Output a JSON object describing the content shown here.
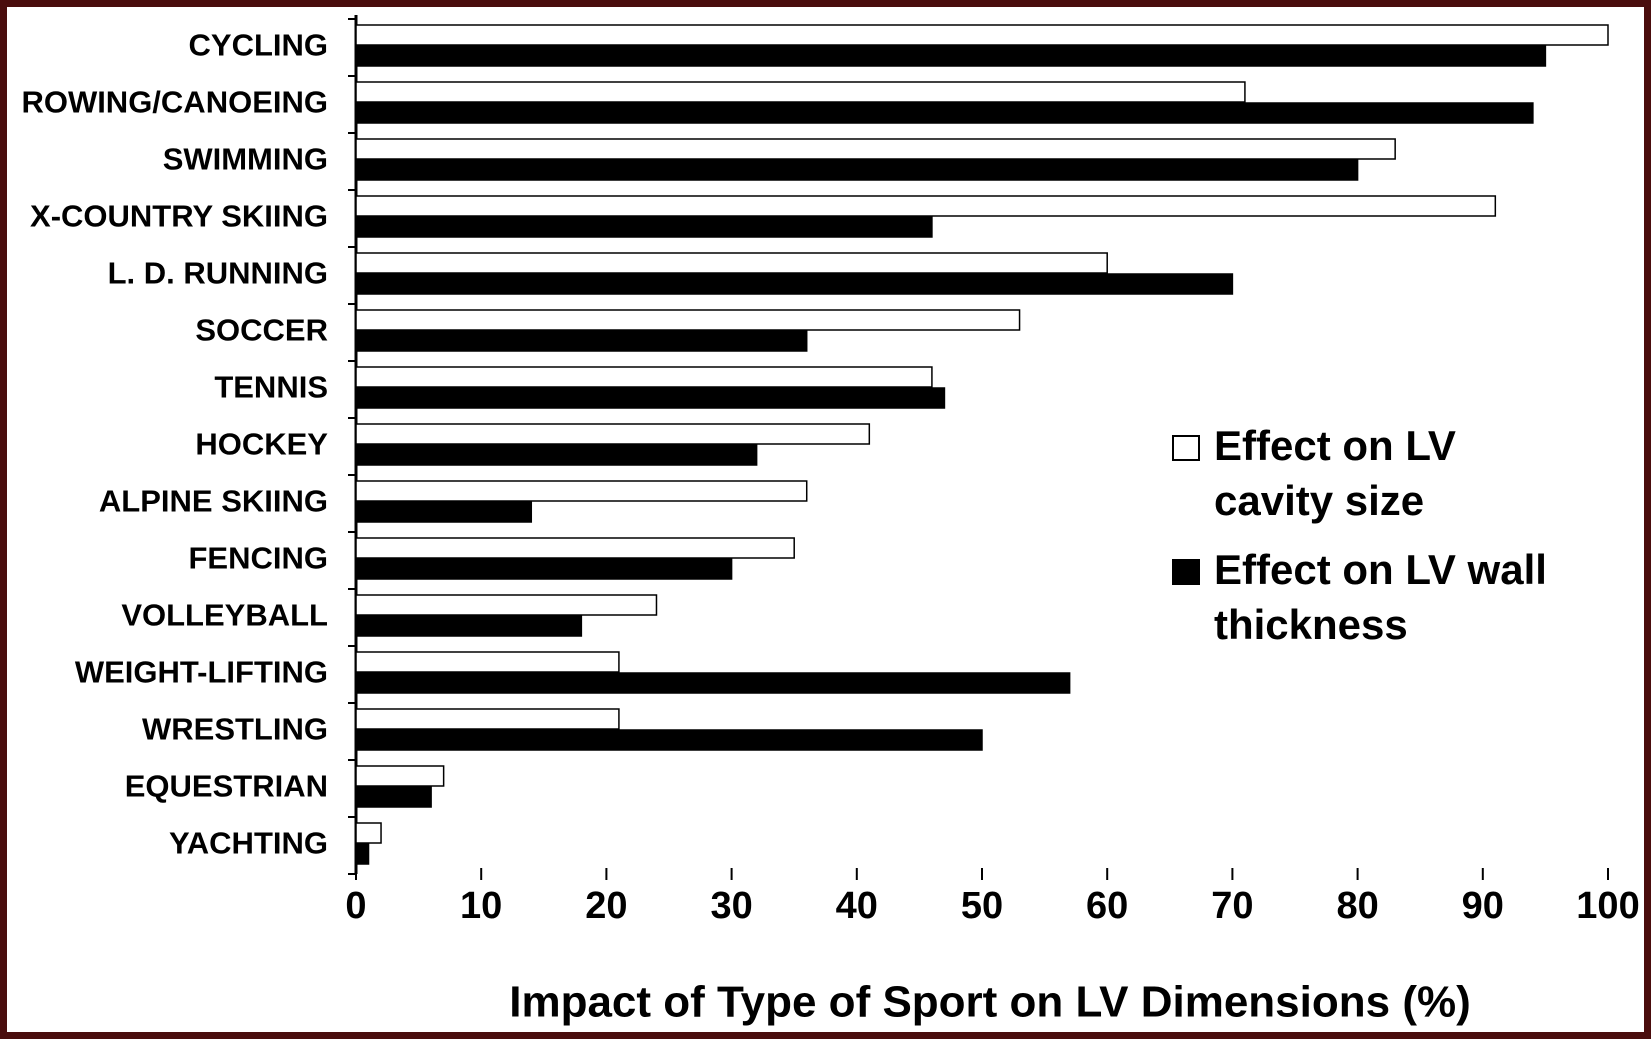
{
  "chart_data": {
    "type": "barh",
    "xlabel": "Impact of Type of Sport on LV Dimensions (%)",
    "categories": [
      "CYCLING",
      "ROWING/CANOEING",
      "SWIMMING",
      "X-COUNTRY SKIING",
      "L. D. RUNNING",
      "SOCCER",
      "TENNIS",
      "HOCKEY",
      "ALPINE SKIING",
      "FENCING",
      "VOLLEYBALL",
      "WEIGHT-LIFTING",
      "WRESTLING",
      "EQUESTRIAN",
      "YACHTING"
    ],
    "series": [
      {
        "name": "Effect on LV cavity size",
        "color": "#ffffff",
        "values": [
          100,
          71,
          83,
          91,
          60,
          53,
          46,
          41,
          36,
          35,
          24,
          21,
          21,
          7,
          2
        ]
      },
      {
        "name": "Effect on LV wall thickness",
        "color": "#000000",
        "values": [
          95,
          94,
          80,
          46,
          70,
          36,
          47,
          32,
          14,
          30,
          18,
          57,
          50,
          6,
          1
        ]
      }
    ],
    "xlim": [
      0,
      100
    ],
    "xticks": [
      0,
      10,
      20,
      30,
      40,
      50,
      60,
      70,
      80,
      90,
      100
    ],
    "legend": "right"
  }
}
